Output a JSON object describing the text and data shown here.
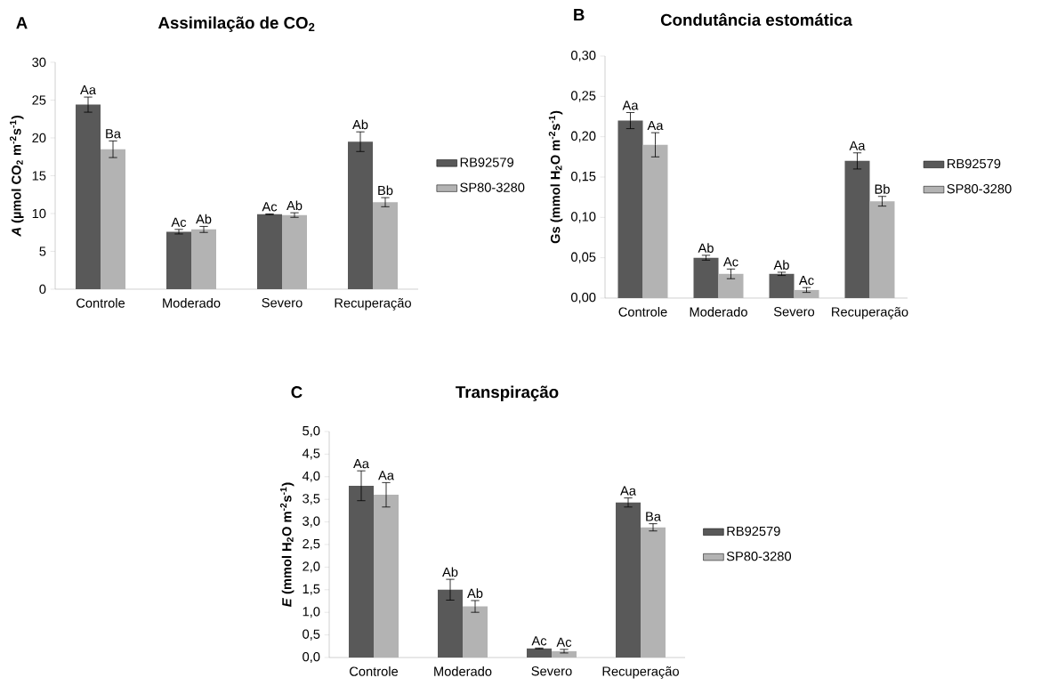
{
  "chart_data": [
    {
      "type": "bar",
      "title": "Assimilação de CO$_{2}$",
      "ylabel": "*A* (µmol CO$_{2}$ m$^{-2}$s$^{-1}$)",
      "categories": [
        "Controle",
        "Moderado",
        "Severo",
        "Recuperação"
      ],
      "series": [
        {
          "name": "RB92579",
          "color": "#595959",
          "values": [
            24.4,
            7.6,
            9.9,
            19.5
          ],
          "errors": [
            1.0,
            0.3,
            0.05,
            1.3
          ]
        },
        {
          "name": "SP80-3280",
          "color": "#b3b3b3",
          "values": [
            18.5,
            7.9,
            9.8,
            11.5
          ],
          "errors": [
            1.1,
            0.4,
            0.3,
            0.6
          ]
        }
      ],
      "ylim": [
        0,
        30
      ],
      "yticks": [
        0,
        5,
        10,
        15,
        20,
        25,
        30
      ],
      "grid": false,
      "legend": "right",
      "annotations": [
        "A",
        "Aa",
        "Ac",
        "Ac",
        "Ab",
        "Ba",
        "Ab",
        "Ab",
        "Bb"
      ]
    },
    {
      "type": "bar",
      "title": "Condutância estomática",
      "ylabel": "Gs (mmol H$_{2}$O m$^{-2}$s$^{-1}$)",
      "categories": [
        "Controle",
        "Moderado",
        "Severo",
        "Recuperação"
      ],
      "series": [
        {
          "name": "RB92579",
          "color": "#595959",
          "values": [
            0.22,
            0.05,
            0.03,
            0.17
          ],
          "errors": [
            0.01,
            0.003,
            0.002,
            0.01
          ]
        },
        {
          "name": "SP80-3280",
          "color": "#b3b3b3",
          "values": [
            0.19,
            0.03,
            0.01,
            0.12
          ],
          "errors": [
            0.015,
            0.006,
            0.003,
            0.006
          ]
        }
      ],
      "ylim": [
        0,
        0.3
      ],
      "yticks": [
        {
          "value": 0,
          "label": "0,00"
        },
        {
          "value": 0.05,
          "label": "0,05"
        },
        {
          "value": 0.1,
          "label": "0,10"
        },
        {
          "value": 0.15,
          "label": "0,15"
        },
        {
          "value": 0.2,
          "label": "0,20"
        },
        {
          "value": 0.25,
          "label": "0,25"
        },
        {
          "value": 0.3,
          "label": "0,30"
        }
      ],
      "grid": false,
      "legend": "right",
      "annotations": [
        "B",
        "Aa",
        "Ab",
        "Ab",
        "Aa",
        "Aa",
        "Ac",
        "Ac",
        "Bb"
      ]
    },
    {
      "type": "bar",
      "title": "Transpiração",
      "ylabel": "*E* (mmol H$_{2}$O m$^{-2}$s$^{-1}$)",
      "categories": [
        "Controle",
        "Moderado",
        "Severo",
        "Recuperação"
      ],
      "series": [
        {
          "name": "RB92579",
          "color": "#595959",
          "values": [
            3.8,
            1.5,
            0.2,
            3.43
          ],
          "errors": [
            0.33,
            0.23,
            0.01,
            0.1
          ]
        },
        {
          "name": "SP80-3280",
          "color": "#b3b3b3",
          "values": [
            3.6,
            1.13,
            0.14,
            2.88
          ],
          "errors": [
            0.27,
            0.13,
            0.04,
            0.08
          ]
        }
      ],
      "ylim": [
        0,
        5
      ],
      "yticks": [
        {
          "value": 0,
          "label": "0,0"
        },
        {
          "value": 0.5,
          "label": "0,5"
        },
        {
          "value": 1,
          "label": "1,0"
        },
        {
          "value": 1.5,
          "label": "1,5"
        },
        {
          "value": 2,
          "label": "2,0"
        },
        {
          "value": 2.5,
          "label": "2,5"
        },
        {
          "value": 3,
          "label": "3,0"
        },
        {
          "value": 3.5,
          "label": "3,5"
        },
        {
          "value": 4,
          "label": "4,0"
        },
        {
          "value": 4.5,
          "label": "4,5"
        },
        {
          "value": 5,
          "label": "5,0"
        }
      ],
      "grid": false,
      "legend": "right",
      "annotations": [
        "C",
        "Aa",
        "Ab",
        "Ac",
        "Aa",
        "Aa",
        "Ab",
        "Ac",
        "Ba"
      ]
    }
  ]
}
